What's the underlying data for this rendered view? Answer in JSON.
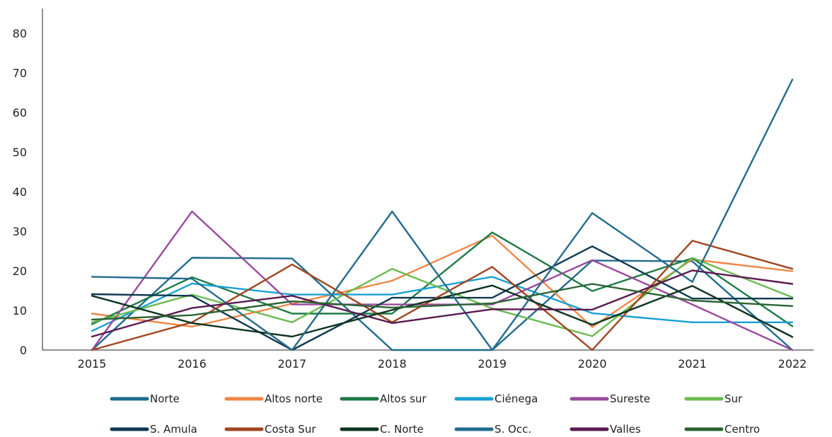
{
  "chart_data": {
    "type": "line",
    "title": "",
    "xlabel": "",
    "ylabel": "",
    "x": [
      "2015",
      "2016",
      "2017",
      "2018",
      "2019",
      "2020",
      "2021",
      "2022"
    ],
    "yticks": [
      "0",
      "10",
      "20",
      "30",
      "40",
      "50",
      "60",
      "70",
      "80"
    ],
    "ylim": [
      0,
      80
    ],
    "grid": false,
    "legend": "bottom",
    "series": [
      {
        "name": "Norte",
        "color": "#1f6b8c",
        "values": [
          0,
          23.3,
          23.1,
          0,
          0,
          22.6,
          22.4,
          0
        ]
      },
      {
        "name": "Altos norte",
        "color": "#ef8745",
        "values": [
          9.2,
          5.9,
          11.7,
          17.5,
          28.9,
          5.8,
          22.9,
          19.9
        ]
      },
      {
        "name": "Altos sur",
        "color": "#1e7a46",
        "values": [
          6.5,
          18.4,
          9.2,
          9.2,
          29.7,
          14.9,
          23.2,
          6.0
        ]
      },
      {
        "name": "Ciénega",
        "color": "#1aa0d5",
        "values": [
          4.8,
          16.8,
          14.0,
          14.0,
          18.5,
          9.3,
          7.0,
          7.0
        ]
      },
      {
        "name": "Sureste",
        "color": "#9a4a9e",
        "values": [
          0,
          35.0,
          11.5,
          11.5,
          11.5,
          22.7,
          11.5,
          0
        ]
      },
      {
        "name": "Sur",
        "color": "#6abb4f",
        "values": [
          7.0,
          14.0,
          7.0,
          20.5,
          10.5,
          3.5,
          23.3,
          13.3
        ]
      },
      {
        "name": "S. Amula",
        "color": "#0f3a4f",
        "values": [
          14.1,
          13.7,
          0,
          13.2,
          13.2,
          26.2,
          13.0,
          13.0
        ]
      },
      {
        "name": "Costa Sur",
        "color": "#a1451f",
        "values": [
          0,
          7.0,
          21.6,
          7.0,
          21.0,
          0,
          27.6,
          20.5
        ]
      },
      {
        "name": "C. Norte",
        "color": "#0c3320",
        "values": [
          13.7,
          6.8,
          3.4,
          10.1,
          16.3,
          6.4,
          16.2,
          3.3
        ]
      },
      {
        "name": "S. Occ.",
        "color": "#236c8e",
        "values": [
          18.5,
          18.0,
          0,
          35.0,
          0,
          34.6,
          17.2,
          68.3
        ]
      },
      {
        "name": "Valles",
        "color": "#5a1a4f",
        "values": [
          3.4,
          10.6,
          13.7,
          6.8,
          10.3,
          10.2,
          20.1,
          16.7
        ]
      },
      {
        "name": "Centro",
        "color": "#2a6332",
        "values": [
          7.7,
          8.8,
          12.3,
          10.7,
          11.8,
          16.7,
          12.5,
          11.1
        ]
      }
    ]
  }
}
